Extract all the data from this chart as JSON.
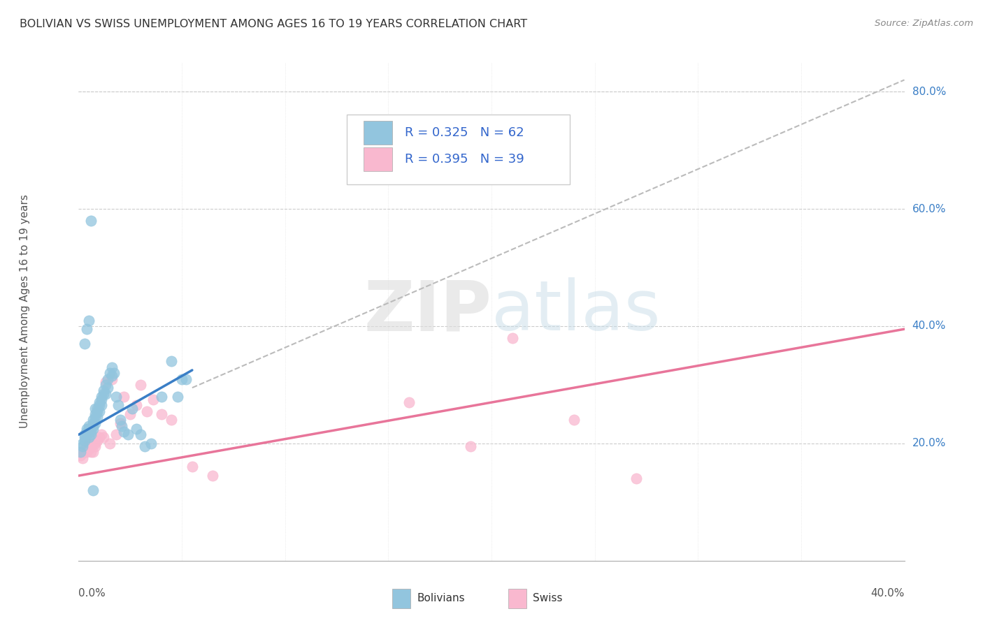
{
  "title": "BOLIVIAN VS SWISS UNEMPLOYMENT AMONG AGES 16 TO 19 YEARS CORRELATION CHART",
  "source": "Source: ZipAtlas.com",
  "ylabel": "Unemployment Among Ages 16 to 19 years",
  "ytick_labels": [
    "20.0%",
    "40.0%",
    "60.0%",
    "80.0%"
  ],
  "ytick_values": [
    0.2,
    0.4,
    0.6,
    0.8
  ],
  "bolivians_R": "0.325",
  "bolivians_N": "62",
  "swiss_R": "0.395",
  "swiss_N": "39",
  "bolivian_color": "#92C5DE",
  "swiss_color": "#F9B8CF",
  "bolivian_line_color": "#3A7EC6",
  "swiss_line_color": "#E8759A",
  "dashed_line_color": "#BBBBBB",
  "legend_text_color": "#3366CC",
  "bolivians_x": [
    0.001,
    0.002,
    0.002,
    0.003,
    0.003,
    0.003,
    0.004,
    0.004,
    0.004,
    0.005,
    0.005,
    0.005,
    0.006,
    0.006,
    0.007,
    0.007,
    0.007,
    0.007,
    0.008,
    0.008,
    0.008,
    0.008,
    0.009,
    0.009,
    0.009,
    0.01,
    0.01,
    0.01,
    0.011,
    0.011,
    0.011,
    0.012,
    0.012,
    0.013,
    0.013,
    0.014,
    0.014,
    0.015,
    0.016,
    0.016,
    0.017,
    0.018,
    0.019,
    0.02,
    0.021,
    0.022,
    0.024,
    0.026,
    0.028,
    0.03,
    0.032,
    0.035,
    0.04,
    0.045,
    0.048,
    0.05,
    0.052,
    0.003,
    0.004,
    0.005,
    0.006,
    0.007
  ],
  "bolivians_y": [
    0.185,
    0.195,
    0.2,
    0.21,
    0.215,
    0.205,
    0.22,
    0.225,
    0.215,
    0.23,
    0.225,
    0.21,
    0.215,
    0.22,
    0.23,
    0.235,
    0.24,
    0.225,
    0.245,
    0.25,
    0.26,
    0.235,
    0.255,
    0.26,
    0.245,
    0.27,
    0.265,
    0.255,
    0.275,
    0.265,
    0.28,
    0.285,
    0.29,
    0.3,
    0.285,
    0.31,
    0.295,
    0.32,
    0.33,
    0.315,
    0.32,
    0.28,
    0.265,
    0.24,
    0.23,
    0.22,
    0.215,
    0.26,
    0.225,
    0.215,
    0.195,
    0.2,
    0.28,
    0.34,
    0.28,
    0.31,
    0.31,
    0.37,
    0.395,
    0.41,
    0.58,
    0.12
  ],
  "swiss_x": [
    0.001,
    0.002,
    0.002,
    0.003,
    0.003,
    0.004,
    0.004,
    0.005,
    0.005,
    0.006,
    0.006,
    0.007,
    0.007,
    0.008,
    0.008,
    0.009,
    0.01,
    0.011,
    0.012,
    0.013,
    0.015,
    0.016,
    0.018,
    0.02,
    0.022,
    0.025,
    0.028,
    0.03,
    0.033,
    0.036,
    0.04,
    0.045,
    0.055,
    0.065,
    0.16,
    0.19,
    0.21,
    0.24,
    0.27
  ],
  "swiss_y": [
    0.18,
    0.185,
    0.175,
    0.19,
    0.185,
    0.195,
    0.185,
    0.2,
    0.19,
    0.195,
    0.185,
    0.2,
    0.185,
    0.2,
    0.195,
    0.205,
    0.21,
    0.215,
    0.21,
    0.305,
    0.2,
    0.31,
    0.215,
    0.235,
    0.28,
    0.25,
    0.265,
    0.3,
    0.255,
    0.275,
    0.25,
    0.24,
    0.16,
    0.145,
    0.27,
    0.195,
    0.38,
    0.24,
    0.14
  ],
  "bolivian_trendline_x": [
    0.0,
    0.055
  ],
  "bolivian_trendline_y": [
    0.215,
    0.325
  ],
  "swiss_trendline_x": [
    0.0,
    0.4
  ],
  "swiss_trendline_y": [
    0.145,
    0.395
  ],
  "dashed_trendline_x": [
    0.055,
    0.4
  ],
  "dashed_trendline_y": [
    0.295,
    0.82
  ],
  "watermark_zip": "ZIP",
  "watermark_atlas": "atlas",
  "background_color": "#FFFFFF",
  "xmin": 0.0,
  "xmax": 0.4,
  "ymin": 0.0,
  "ymax": 0.85
}
